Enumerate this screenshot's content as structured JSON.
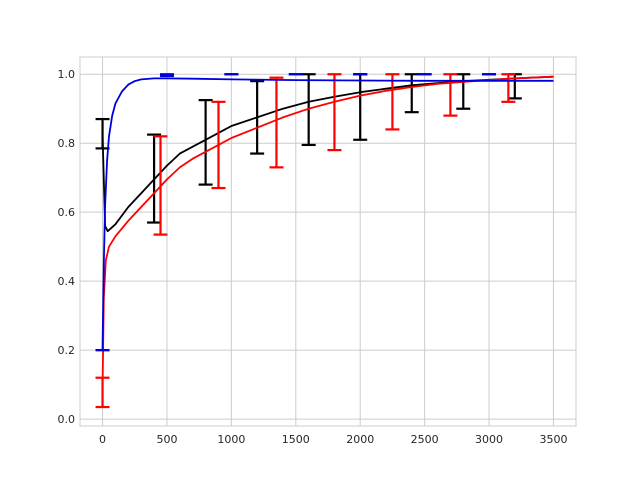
{
  "chart_data": {
    "type": "line",
    "title": "",
    "xlabel": "",
    "ylabel": "",
    "xlim": [
      -175,
      3675
    ],
    "ylim": [
      -0.02,
      1.05
    ],
    "grid": true,
    "legend": "none",
    "x_ticks": [
      0,
      500,
      1000,
      1500,
      2000,
      2500,
      3000,
      3500
    ],
    "x_tick_labels": [
      "0",
      "500",
      "1000",
      "1500",
      "2000",
      "2500",
      "3000",
      "3500"
    ],
    "y_ticks": [
      0.0,
      0.2,
      0.4,
      0.6,
      0.8,
      1.0
    ],
    "y_tick_labels": [
      "0.0",
      "0.2",
      "0.4",
      "0.6",
      "0.8",
      "1.0"
    ],
    "series": [
      {
        "color": "#000000",
        "line": {
          "x": [
            0,
            20,
            40,
            100,
            200,
            300,
            400,
            500,
            600,
            700,
            800,
            900,
            1000,
            1200,
            1400,
            1600,
            1800,
            2000,
            2200,
            2400,
            2600,
            2800,
            3000,
            3200,
            3500
          ],
          "y": [
            0.83,
            0.56,
            0.545,
            0.565,
            0.615,
            0.655,
            0.695,
            0.735,
            0.77,
            0.79,
            0.81,
            0.83,
            0.85,
            0.875,
            0.9,
            0.92,
            0.935,
            0.948,
            0.958,
            0.968,
            0.974,
            0.98,
            0.984,
            0.988,
            0.993
          ]
        },
        "error_bars": [
          {
            "x": 0,
            "low": 0.785,
            "high": 0.87
          },
          {
            "x": 400,
            "low": 0.57,
            "high": 0.825
          },
          {
            "x": 800,
            "low": 0.68,
            "high": 0.925
          },
          {
            "x": 1200,
            "low": 0.77,
            "high": 0.98
          },
          {
            "x": 1600,
            "low": 0.795,
            "high": 1.0
          },
          {
            "x": 2000,
            "low": 0.81,
            "high": 1.0
          },
          {
            "x": 2400,
            "low": 0.89,
            "high": 1.0
          },
          {
            "x": 2800,
            "low": 0.9,
            "high": 1.0
          },
          {
            "x": 3200,
            "low": 0.93,
            "high": 1.0
          }
        ]
      },
      {
        "color": "#ff0000",
        "line": {
          "x": [
            0,
            10,
            25,
            50,
            100,
            200,
            300,
            400,
            500,
            600,
            700,
            800,
            900,
            1000,
            1200,
            1400,
            1600,
            1800,
            2000,
            2200,
            2400,
            2600,
            2800,
            3000,
            3200,
            3500
          ],
          "y": [
            0.08,
            0.35,
            0.46,
            0.5,
            0.53,
            0.575,
            0.615,
            0.655,
            0.695,
            0.73,
            0.755,
            0.775,
            0.795,
            0.815,
            0.845,
            0.875,
            0.9,
            0.92,
            0.938,
            0.952,
            0.963,
            0.972,
            0.978,
            0.983,
            0.988,
            0.993
          ]
        },
        "error_bars": [
          {
            "x": 0,
            "low": 0.035,
            "high": 0.12
          },
          {
            "x": 450,
            "low": 0.535,
            "high": 0.82
          },
          {
            "x": 900,
            "low": 0.67,
            "high": 0.92
          },
          {
            "x": 1350,
            "low": 0.73,
            "high": 0.99
          },
          {
            "x": 1800,
            "low": 0.78,
            "high": 1.0
          },
          {
            "x": 2250,
            "low": 0.84,
            "high": 1.0
          },
          {
            "x": 2700,
            "low": 0.88,
            "high": 1.0
          },
          {
            "x": 3150,
            "low": 0.92,
            "high": 1.0
          }
        ]
      },
      {
        "color": "#0000dd",
        "line": {
          "x": [
            0,
            10,
            20,
            35,
            50,
            75,
            100,
            150,
            200,
            250,
            300,
            400,
            500,
            700,
            1000,
            1500,
            2000,
            2500,
            3000,
            3500
          ],
          "y": [
            0.2,
            0.45,
            0.62,
            0.75,
            0.82,
            0.88,
            0.915,
            0.95,
            0.97,
            0.98,
            0.985,
            0.988,
            0.988,
            0.987,
            0.985,
            0.983,
            0.982,
            0.981,
            0.981,
            0.981
          ]
        },
        "error_bars": [
          {
            "x": 0,
            "low": 0.2,
            "high": 0.2
          },
          {
            "x": 500,
            "low": 0.995,
            "high": 1.0
          },
          {
            "x": 1000,
            "low": 1.0,
            "high": 1.0
          },
          {
            "x": 1500,
            "low": 1.0,
            "high": 1.0
          },
          {
            "x": 2000,
            "low": 1.0,
            "high": 1.0
          },
          {
            "x": 2500,
            "low": 1.0,
            "high": 1.0
          },
          {
            "x": 3000,
            "low": 1.0,
            "high": 1.0
          }
        ]
      }
    ]
  }
}
